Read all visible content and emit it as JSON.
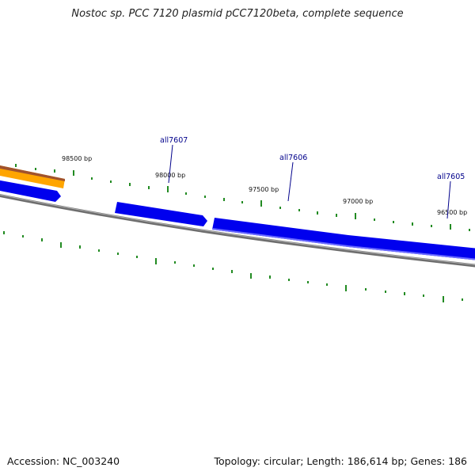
{
  "title": "Nostoc sp. PCC 7120 plasmid pCC7120beta, complete sequence",
  "footer": {
    "accession": "Accession: NC_003240",
    "summary": "Topology: circular; Length: 186,614 bp; Genes: 186"
  },
  "colors": {
    "backbone": "#7f7f7f",
    "gene_forward": "#ff8c00",
    "gene_reverse": "#0000ee",
    "tick": "#228b22",
    "gene_label": "#00008b",
    "bp_label": "#111111"
  },
  "bp_labels": [
    "98500 bp",
    "98000 bp",
    "97500 bp",
    "97000 bp",
    "96500 bp"
  ],
  "genes": [
    {
      "name": "",
      "strand": "forward"
    },
    {
      "name": "",
      "strand": "reverse"
    },
    {
      "name": "all7607",
      "strand": "reverse"
    },
    {
      "name": "all7606",
      "strand": "reverse"
    },
    {
      "name": "all7605",
      "strand": "reverse"
    }
  ]
}
